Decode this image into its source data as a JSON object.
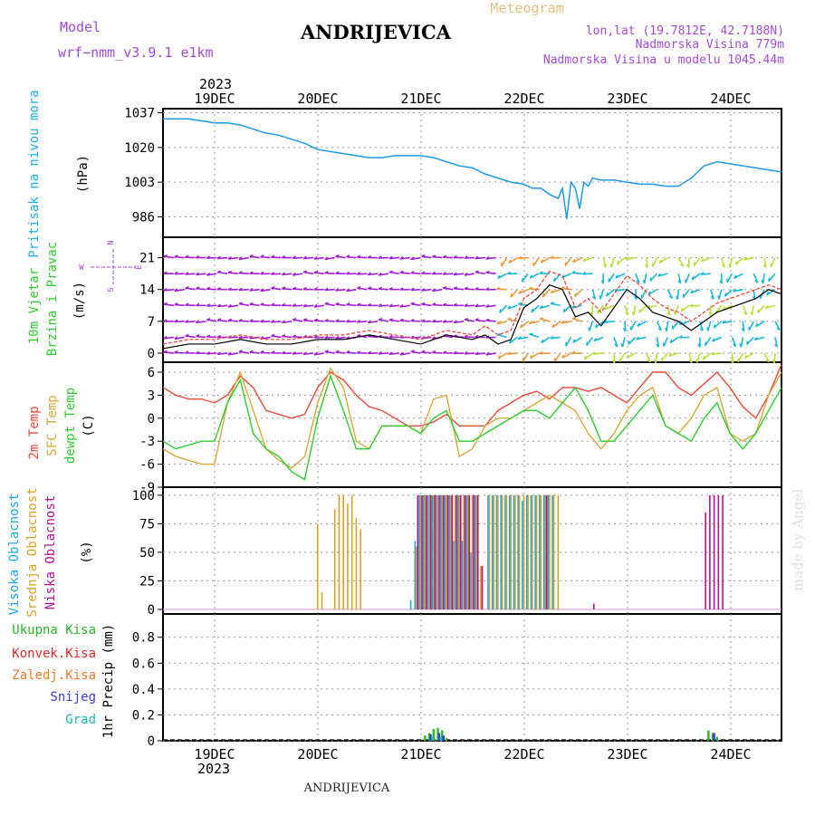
{
  "header": {
    "model_label": "Model",
    "model_name": "wrf−nmm_v3.9.1  e1km",
    "title": "ANDRIJEVICA",
    "meteogram_label": "Meteogram",
    "lonlat": "lon,lat (19.7812E, 42.7188N)",
    "elevation": "Nadmorska Visina 779m",
    "model_elevation": "Nadmorska Visina u modelu 1045.44m",
    "watermark": "made by Angel",
    "footer_name": "ANDRIJEVICA",
    "year_top": "2023",
    "year_bottom": "2023"
  },
  "colors": {
    "pressure": "#1e9be6",
    "temp2m": "#e84a3a",
    "sfc_temp": "#d8a93a",
    "dewpoint": "#2ecc2e",
    "wind_purple": "#a21fd6",
    "wind_cyan": "#19b8d8",
    "high_cloud": "#1ea8e0",
    "mid_cloud": "#d8a22a",
    "low_cloud": "#b0108e",
    "total_precip": "#2ab52a",
    "conv_precip": "#e02a2a",
    "frz_precip": "#f07a2a",
    "snow": "#3a3ad8",
    "hail": "#1ab8b0"
  },
  "chart_data": [
    {
      "type": "line",
      "id": "pressure",
      "ylabel_title": "Pritisak na nivou mora",
      "ylabel_unit": "(hPa)",
      "yticks": [
        986,
        1003,
        1020,
        1037
      ],
      "ylim": [
        976,
        1039
      ],
      "x_day_labels": [
        "19DEC",
        "20DEC",
        "21DEC",
        "22DEC",
        "23DEC",
        "24DEC"
      ],
      "xlim_hours": [
        0,
        144
      ],
      "x": [
        0,
        3,
        6,
        9,
        12,
        15,
        18,
        21,
        24,
        27,
        30,
        33,
        36,
        39,
        42,
        45,
        48,
        51,
        54,
        57,
        60,
        63,
        66,
        69,
        72,
        75,
        78,
        81,
        84,
        86,
        88,
        90,
        92,
        93,
        94,
        95,
        96,
        97,
        98,
        99,
        100,
        102,
        105,
        108,
        111,
        114,
        117,
        120,
        123,
        126,
        129,
        132,
        135,
        138,
        141,
        144
      ],
      "values": [
        1034,
        1034,
        1034,
        1033,
        1032,
        1032,
        1031,
        1029,
        1027,
        1026,
        1024,
        1022,
        1019,
        1018,
        1017,
        1016,
        1015,
        1015,
        1016,
        1016,
        1016,
        1015,
        1013,
        1011,
        1010,
        1007,
        1005,
        1003,
        1002,
        1000,
        1000,
        997,
        995,
        1000,
        985,
        1003,
        1000,
        990,
        1003,
        1001,
        1005,
        1004,
        1004,
        1003,
        1002,
        1002,
        1001,
        1001,
        1005,
        1011,
        1013,
        1012,
        1011,
        1010,
        1009,
        1008
      ]
    },
    {
      "type": "line",
      "id": "wind",
      "ylabel_title": "10m Vjetar",
      "ylabel_title2": "Brzina i Pravac",
      "ylabel_unit": "(m/s)",
      "compass": [
        "N",
        "E",
        "S",
        "W"
      ],
      "yticks": [
        0,
        7,
        14,
        21
      ],
      "ylim": [
        -2,
        25.5
      ],
      "xlim_hours": [
        0,
        144
      ],
      "x": [
        0,
        6,
        12,
        18,
        24,
        30,
        36,
        42,
        48,
        54,
        60,
        66,
        72,
        75,
        78,
        81,
        84,
        87,
        90,
        93,
        96,
        99,
        102,
        105,
        108,
        111,
        114,
        117,
        120,
        123,
        126,
        129,
        132,
        135,
        138,
        141,
        144
      ],
      "values": [
        1,
        2,
        2,
        3,
        2,
        2,
        3,
        3,
        4,
        3,
        2,
        4,
        3,
        4,
        2,
        3,
        10,
        12,
        15,
        14,
        8,
        9,
        6,
        10,
        14,
        12,
        9,
        8,
        7,
        5,
        7,
        9,
        10,
        11,
        12,
        14,
        13
      ],
      "series": [
        {
          "name": "speed",
          "x": [
            0,
            6,
            12,
            18,
            24,
            30,
            36,
            42,
            48,
            54,
            60,
            66,
            72,
            75,
            78,
            81,
            84,
            87,
            90,
            93,
            96,
            99,
            102,
            105,
            108,
            111,
            114,
            117,
            120,
            123,
            126,
            129,
            132,
            135,
            138,
            141,
            144
          ],
          "values": [
            1,
            2,
            2,
            3,
            2,
            2,
            3,
            3,
            4,
            3,
            2,
            4,
            3,
            4,
            2,
            3,
            10,
            12,
            15,
            14,
            8,
            9,
            6,
            10,
            14,
            12,
            9,
            8,
            7,
            5,
            7,
            9,
            10,
            11,
            12,
            14,
            13
          ]
        },
        {
          "name": "gust",
          "x": [
            0,
            6,
            12,
            18,
            24,
            30,
            36,
            42,
            48,
            54,
            60,
            66,
            72,
            75,
            78,
            81,
            84,
            87,
            90,
            93,
            96,
            99,
            102,
            105,
            108,
            111,
            114,
            117,
            120,
            123,
            126,
            129,
            132,
            135,
            138,
            141,
            144
          ],
          "values": [
            2,
            3,
            3,
            4,
            3,
            3,
            4,
            4,
            5,
            4,
            3,
            5,
            4,
            6,
            4,
            5,
            12,
            14,
            18,
            17,
            10,
            12,
            9,
            13,
            17,
            15,
            12,
            10,
            9,
            7,
            9,
            11,
            12,
            13,
            14,
            15,
            14
          ]
        }
      ]
    },
    {
      "type": "line",
      "id": "temperature",
      "ylabel_title": "2m Temp",
      "ylabel_title2": "SFC Temp",
      "ylabel_title3": "dewpt Temp",
      "ylabel_unit": "(C)",
      "yticks": [
        -9,
        -6,
        -3,
        0,
        3,
        6
      ],
      "ylim": [
        -9,
        7.3
      ],
      "xlim_hours": [
        0,
        144
      ],
      "x": [
        0,
        3,
        6,
        9,
        12,
        15,
        18,
        21,
        24,
        27,
        30,
        33,
        36,
        39,
        42,
        45,
        48,
        51,
        54,
        57,
        60,
        63,
        66,
        69,
        72,
        75,
        78,
        81,
        84,
        87,
        90,
        93,
        96,
        99,
        102,
        105,
        108,
        111,
        114,
        117,
        120,
        123,
        126,
        129,
        132,
        135,
        138,
        141,
        144
      ],
      "series": [
        {
          "name": "2m Temp",
          "values": [
            4,
            3,
            2.5,
            2.5,
            2,
            3,
            5.5,
            4,
            1,
            0.5,
            0,
            0.5,
            4,
            6,
            5,
            3,
            1.5,
            1,
            0,
            -1,
            -1,
            -0.5,
            0.5,
            -1,
            -1,
            -1,
            1,
            2,
            3,
            3.5,
            2.5,
            4,
            4,
            3.5,
            4,
            3,
            2,
            4,
            6,
            6,
            4,
            3,
            4.5,
            6,
            4,
            1.5,
            0,
            3,
            7
          ]
        },
        {
          "name": "SFC Temp",
          "values": [
            -4,
            -5,
            -5.5,
            -6,
            -6,
            2,
            6,
            1,
            -4,
            -5.5,
            -6.5,
            -5,
            2,
            6.5,
            4,
            -3,
            -4,
            -1,
            -1,
            -1,
            -2,
            2.5,
            3,
            -5,
            -4,
            -1,
            0,
            0,
            1,
            2,
            3,
            2,
            1,
            -2,
            -4,
            -2,
            1,
            3,
            4,
            -1,
            -2,
            0,
            3,
            4,
            -2,
            -3,
            -2,
            3,
            6
          ]
        },
        {
          "name": "dewpt Temp",
          "values": [
            -3,
            -4,
            -3.5,
            -3,
            -3,
            2,
            5,
            -2,
            -4,
            -5,
            -7,
            -8,
            0,
            5.5,
            1,
            -4,
            -4,
            -1,
            -1,
            -1,
            -2,
            0,
            1,
            -3,
            -3,
            -2,
            -1,
            0,
            1,
            1,
            0,
            2,
            4,
            1,
            -3,
            -3,
            -1,
            1,
            3,
            -1,
            -2,
            -3,
            0,
            2,
            -2,
            -4,
            -2,
            1,
            4
          ]
        }
      ]
    },
    {
      "type": "bar",
      "id": "clouds",
      "ylabel_title": "Visoka Oblacnost",
      "ylabel_title2": "Srednja Oblacnost",
      "ylabel_title3": "Niska Oblacnost",
      "ylabel_unit": "(%)",
      "yticks": [
        0,
        25,
        50,
        75,
        100
      ],
      "ylim": [
        -4,
        107
      ],
      "xlim_hours": [
        0,
        144
      ],
      "series": [
        {
          "name": "Visoka Oblacnost",
          "x": [
            58,
            59,
            60,
            61,
            62,
            63,
            64,
            65,
            66,
            67,
            68,
            69,
            70,
            71,
            72,
            73,
            76,
            77,
            78,
            79,
            80,
            81,
            82,
            83,
            84,
            85,
            86,
            87,
            88,
            89,
            90,
            91
          ],
          "values": [
            8,
            60,
            100,
            100,
            100,
            100,
            100,
            100,
            100,
            100,
            60,
            100,
            60,
            100,
            50,
            100,
            100,
            100,
            100,
            100,
            100,
            100,
            100,
            100,
            95,
            100,
            100,
            100,
            100,
            100,
            100,
            100
          ]
        },
        {
          "name": "Srednja Oblacnost",
          "x": [
            36,
            37,
            40,
            41,
            42,
            43,
            44,
            45,
            46,
            59,
            60,
            61,
            62,
            63,
            64,
            65,
            66,
            67,
            68,
            69,
            70,
            71,
            72,
            73,
            74,
            76,
            77,
            78,
            79,
            80,
            81,
            82,
            83,
            84,
            85,
            86,
            87,
            88,
            89,
            90,
            91,
            92
          ],
          "values": [
            75,
            15,
            88,
            100,
            100,
            93,
            100,
            80,
            70,
            55,
            100,
            100,
            100,
            100,
            100,
            100,
            100,
            100,
            100,
            100,
            100,
            100,
            100,
            100,
            38,
            100,
            100,
            100,
            100,
            100,
            100,
            100,
            100,
            100,
            100,
            100,
            100,
            100,
            100,
            100,
            100,
            100
          ]
        },
        {
          "name": "Niska Oblacnost",
          "x": [
            59,
            60,
            61,
            62,
            63,
            64,
            65,
            66,
            67,
            68,
            69,
            70,
            71,
            72,
            73,
            74,
            89,
            100,
            126,
            127,
            128,
            129,
            130
          ],
          "values": [
            100,
            100,
            100,
            100,
            100,
            100,
            100,
            100,
            100,
            100,
            100,
            100,
            100,
            100,
            100,
            38,
            100,
            5,
            85,
            100,
            100,
            100,
            100
          ]
        }
      ]
    },
    {
      "type": "bar",
      "id": "precip",
      "ylabel_unit": "1hr Precip (mm)",
      "legend": [
        "Ukupna  Kisa",
        "Konvek.Kisa",
        "Zaledj.Kisa",
        "Snijeg",
        "Grad"
      ],
      "yticks": [
        0,
        0.2,
        0.4,
        0.6,
        0.8
      ],
      "ylim": [
        0,
        0.98
      ],
      "x_day_labels": [
        "19DEC",
        "20DEC",
        "21DEC",
        "22DEC",
        "23DEC",
        "24DEC"
      ],
      "xlim_hours": [
        0,
        144
      ],
      "series": [
        {
          "name": "Ukupna  Kisa",
          "x": [
            61,
            62,
            63,
            64,
            65,
            66,
            127,
            128,
            129
          ],
          "values": [
            0.04,
            0.06,
            0.09,
            0.1,
            0.08,
            0.02,
            0.08,
            0.06,
            0.03
          ]
        },
        {
          "name": "Snijeg",
          "x": [
            62,
            64,
            65,
            128
          ],
          "values": [
            0.05,
            0.06,
            0.04,
            0.06
          ]
        },
        {
          "name": "Grad",
          "x": [
            63,
            65
          ],
          "values": [
            0.03,
            0.03
          ]
        }
      ]
    }
  ]
}
